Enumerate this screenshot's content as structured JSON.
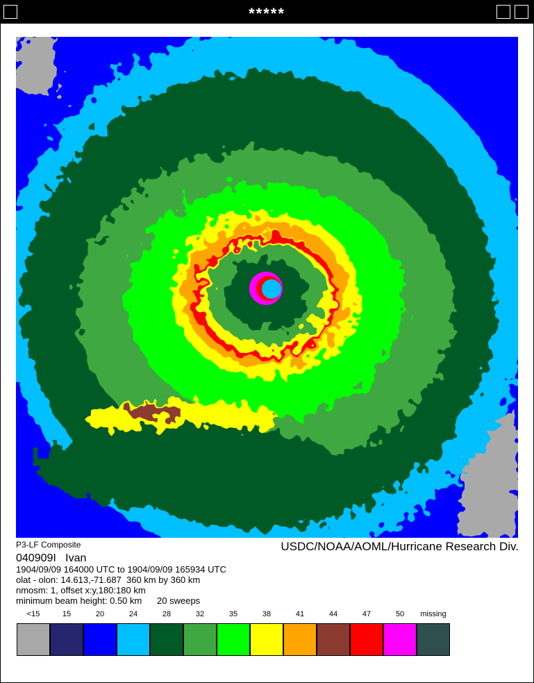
{
  "window": {
    "title": "*****"
  },
  "header": {
    "product": "P3-LF Composite",
    "source": "USDC/NOAA/AOML/Hurricane Research Div."
  },
  "info": {
    "storm": "040909I   Ivan",
    "lines": [
      "1904/09/09 164000 UTC to 1904/09/09 165934 UTC",
      "olat - olon: 14.613,-71.687  360 km by 360 km",
      "nmosm: 1, offset x:y,180:180 km",
      "minimum beam height: 0.50 km      20 sweeps"
    ]
  },
  "legend": [
    {
      "label": "<15",
      "color": "#a9a9a9"
    },
    {
      "label": "15",
      "color": "#26266e"
    },
    {
      "label": "20",
      "color": "#0000ff"
    },
    {
      "label": "24",
      "color": "#00bfff"
    },
    {
      "label": "28",
      "color": "#005a28"
    },
    {
      "label": "32",
      "color": "#40a840"
    },
    {
      "label": "35",
      "color": "#00ff00"
    },
    {
      "label": "38",
      "color": "#ffff00"
    },
    {
      "label": "41",
      "color": "#ffa500"
    },
    {
      "label": "44",
      "color": "#8b3a30"
    },
    {
      "label": "47",
      "color": "#ff0000"
    },
    {
      "label": "50",
      "color": "#ff00ff"
    },
    {
      "label": "missing",
      "color": "#2f4f4f"
    }
  ]
}
